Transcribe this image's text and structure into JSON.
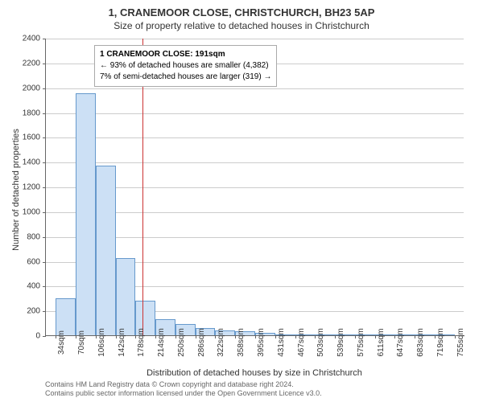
{
  "title": "1, CRANEMOOR CLOSE, CHRISTCHURCH, BH23 5AP",
  "subtitle": "Size of property relative to detached houses in Christchurch",
  "y_axis": {
    "label": "Number of detached properties",
    "min": 0,
    "max": 2400,
    "tick_step": 200,
    "ticks": [
      0,
      200,
      400,
      600,
      800,
      1000,
      1200,
      1400,
      1600,
      1800,
      2000,
      2200,
      2400
    ]
  },
  "x_axis": {
    "label": "Distribution of detached houses by size in Christchurch",
    "tick_labels": [
      "34sqm",
      "70sqm",
      "106sqm",
      "142sqm",
      "178sqm",
      "214sqm",
      "250sqm",
      "286sqm",
      "322sqm",
      "358sqm",
      "395sqm",
      "431sqm",
      "467sqm",
      "503sqm",
      "539sqm",
      "575sqm",
      "611sqm",
      "647sqm",
      "683sqm",
      "719sqm",
      "755sqm"
    ]
  },
  "bars": {
    "values": [
      300,
      1950,
      1370,
      620,
      280,
      130,
      90,
      60,
      40,
      30,
      20,
      0,
      0,
      0,
      0,
      0,
      0,
      0,
      0,
      0
    ],
    "fill_color": "#cce0f5",
    "border_color": "#6699cc",
    "width_fraction": 1.0
  },
  "reference_line": {
    "position_sqm": 191,
    "color": "#cc3333"
  },
  "annotation": {
    "line1": "1 CRANEMOOR CLOSE: 191sqm",
    "line2": "← 93% of detached houses are smaller (4,382)",
    "line3": "7% of semi-detached houses are larger (319) →"
  },
  "grid_color": "#cccccc",
  "plot_bg": "#ffffff",
  "footer": {
    "line1": "Contains HM Land Registry data © Crown copyright and database right 2024.",
    "line2": "Contains public sector information licensed under the Open Government Licence v3.0."
  }
}
